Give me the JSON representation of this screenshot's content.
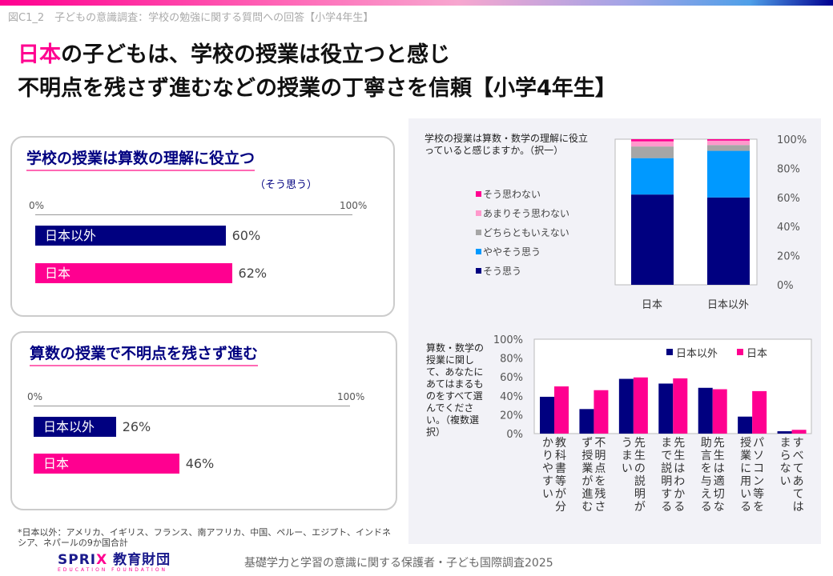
{
  "caption": "図C1_2　子どもの意識調査：学校の勉強に関する質問への回答【小学4年生】",
  "headline": {
    "highlight": "日本",
    "line1_rest": "の子どもは、学校の授業は役立つと感じ",
    "line2": "不明点を残さず進むなどの授業の丁寧さを信頼【小学4年生】"
  },
  "colors": {
    "japan": "#ff0090",
    "other": "#000080",
    "somewhat": "#0099ff",
    "neutral": "#a6a6a6",
    "not_really": "#ff99cc",
    "not": "#ff0090",
    "agree": "#000080"
  },
  "panel1": {
    "title": "学校の授業は算数の理解に役立つ",
    "subtitle": "（そう思う）",
    "axis_min": "0%",
    "axis_max": "100%",
    "bars": [
      {
        "label": "日本以外",
        "value": 60,
        "value_label": "60%"
      },
      {
        "label": "日本",
        "value": 62,
        "value_label": "62%"
      }
    ]
  },
  "panel2": {
    "title": "算数の授業で不明点を残さず進む",
    "axis_min": "0%",
    "axis_max": "100%",
    "bars": [
      {
        "label": "日本以外",
        "value": 26,
        "value_label": "26%"
      },
      {
        "label": "日本",
        "value": 46,
        "value_label": "46%"
      }
    ]
  },
  "chart_data": [
    {
      "type": "bar",
      "stacked": true,
      "title": "学校の授業は算数・数学の理解に役立っていると感じますか。（択一）",
      "categories": [
        "日本",
        "日本以外"
      ],
      "ylim": [
        0,
        100
      ],
      "yticks": [
        "0%",
        "20%",
        "40%",
        "60%",
        "80%",
        "100%"
      ],
      "legend_position": "left",
      "series": [
        {
          "name": "そう思う",
          "values": [
            62,
            60
          ]
        },
        {
          "name": "ややそう思う",
          "values": [
            25,
            32
          ]
        },
        {
          "name": "どちらともいえない",
          "values": [
            8,
            4
          ]
        },
        {
          "name": "あまりそう思わない",
          "values": [
            3.5,
            3
          ]
        },
        {
          "name": "そう思わない",
          "values": [
            1.5,
            1
          ]
        }
      ]
    },
    {
      "type": "bar",
      "title": "算数・数学の授業に関して、あなたにあてはまるものをすべて選んでください。（複数選択）",
      "categories": [
        "教科書等が分かりやすい",
        "不明点を残さず授業が進む",
        "先生の説明がうまい",
        "先生はわかるまで説明する",
        "先生は適切な助言を与える",
        "パソコン等を授業に用いる",
        "すべてあてはまらない"
      ],
      "ylim": [
        0,
        100
      ],
      "yticks": [
        "0%",
        "20%",
        "40%",
        "60%",
        "80%",
        "100%"
      ],
      "legend_position": "top-right",
      "series": [
        {
          "name": "日本以外",
          "values": [
            39,
            26,
            58,
            53,
            48.5,
            18,
            2.5
          ]
        },
        {
          "name": "日本",
          "values": [
            50,
            46,
            59.5,
            58.5,
            47,
            45,
            4
          ]
        }
      ]
    }
  ],
  "footnote": "*日本以外：アメリカ、イギリス、フランス、南アフリカ、中国、ペルー、エジプト、インドネシア、ネパールの9か国合計",
  "logo": {
    "name": "SPRIX教育財団",
    "sub": "EDUCATION FOUNDATION"
  },
  "footer": "基礎学力と学習の意識に関する保護者・子ども国際調査2025"
}
